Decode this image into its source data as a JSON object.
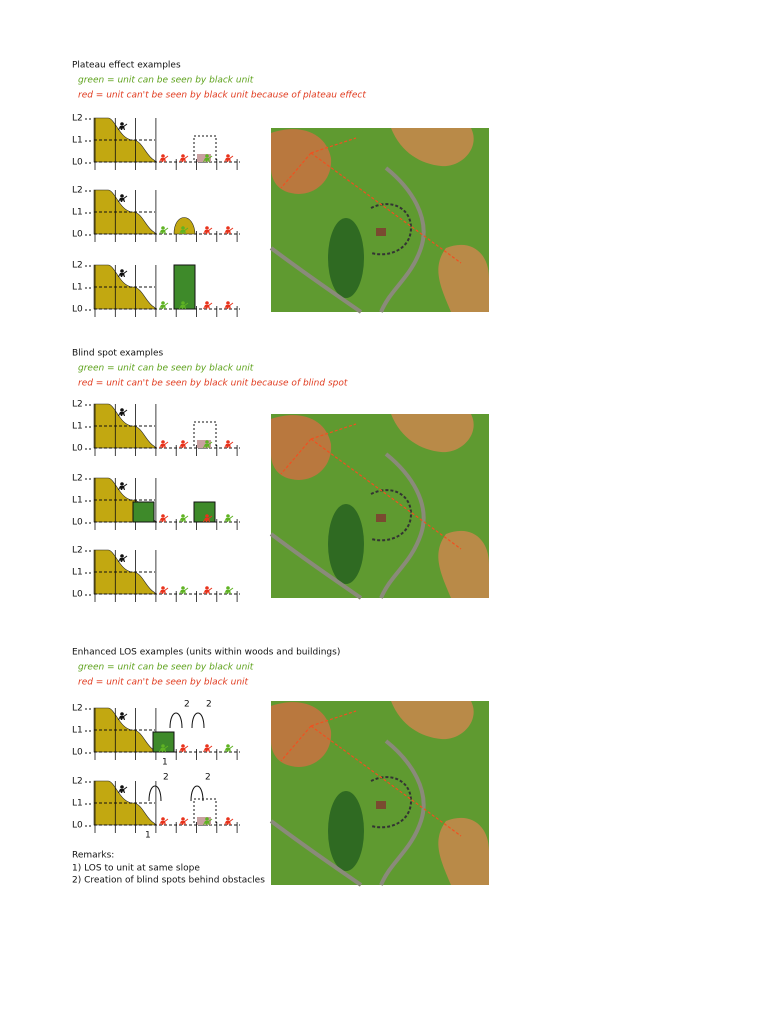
{
  "sections": [
    {
      "title": "Plateau effect examples",
      "legend_green": "green = unit can be seen by black unit",
      "legend_red": "red = unit can't be seen by black unit because  of plateau effect",
      "diagrams": [
        {
          "levels": [
            "L2",
            "L1",
            "L0"
          ]
        },
        {
          "levels": [
            "L2",
            "L1",
            "L0"
          ]
        },
        {
          "levels": [
            "L2",
            "L1",
            "L0"
          ]
        }
      ]
    },
    {
      "title": "Blind spot examples",
      "legend_green": "green = unit can be seen by black unit",
      "legend_red": "red = unit can't be seen by black unit because of blind spot",
      "diagrams": [
        {
          "levels": [
            "L2",
            "L1",
            "L0"
          ]
        },
        {
          "levels": [
            "L2",
            "L1",
            "L0"
          ]
        },
        {
          "levels": [
            "L2",
            "L1",
            "L0"
          ]
        }
      ]
    },
    {
      "title": "Enhanced LOS examples (units within woods and buildings)",
      "legend_green": "green = unit can be seen by black unit",
      "legend_red": "red = unit can't be seen by black unit",
      "diagrams": [
        {
          "levels": [
            "L2",
            "L1",
            "L0"
          ],
          "notes": [
            "1",
            "2",
            "2"
          ]
        },
        {
          "levels": [
            "L2",
            "L1",
            "L0"
          ],
          "notes": [
            "1",
            "2",
            "2"
          ]
        }
      ]
    }
  ],
  "remarks": {
    "title": "Remarks:",
    "items": [
      "1) LOS to unit at same slope",
      "2) Creation of blind spots behind obstacles"
    ]
  }
}
